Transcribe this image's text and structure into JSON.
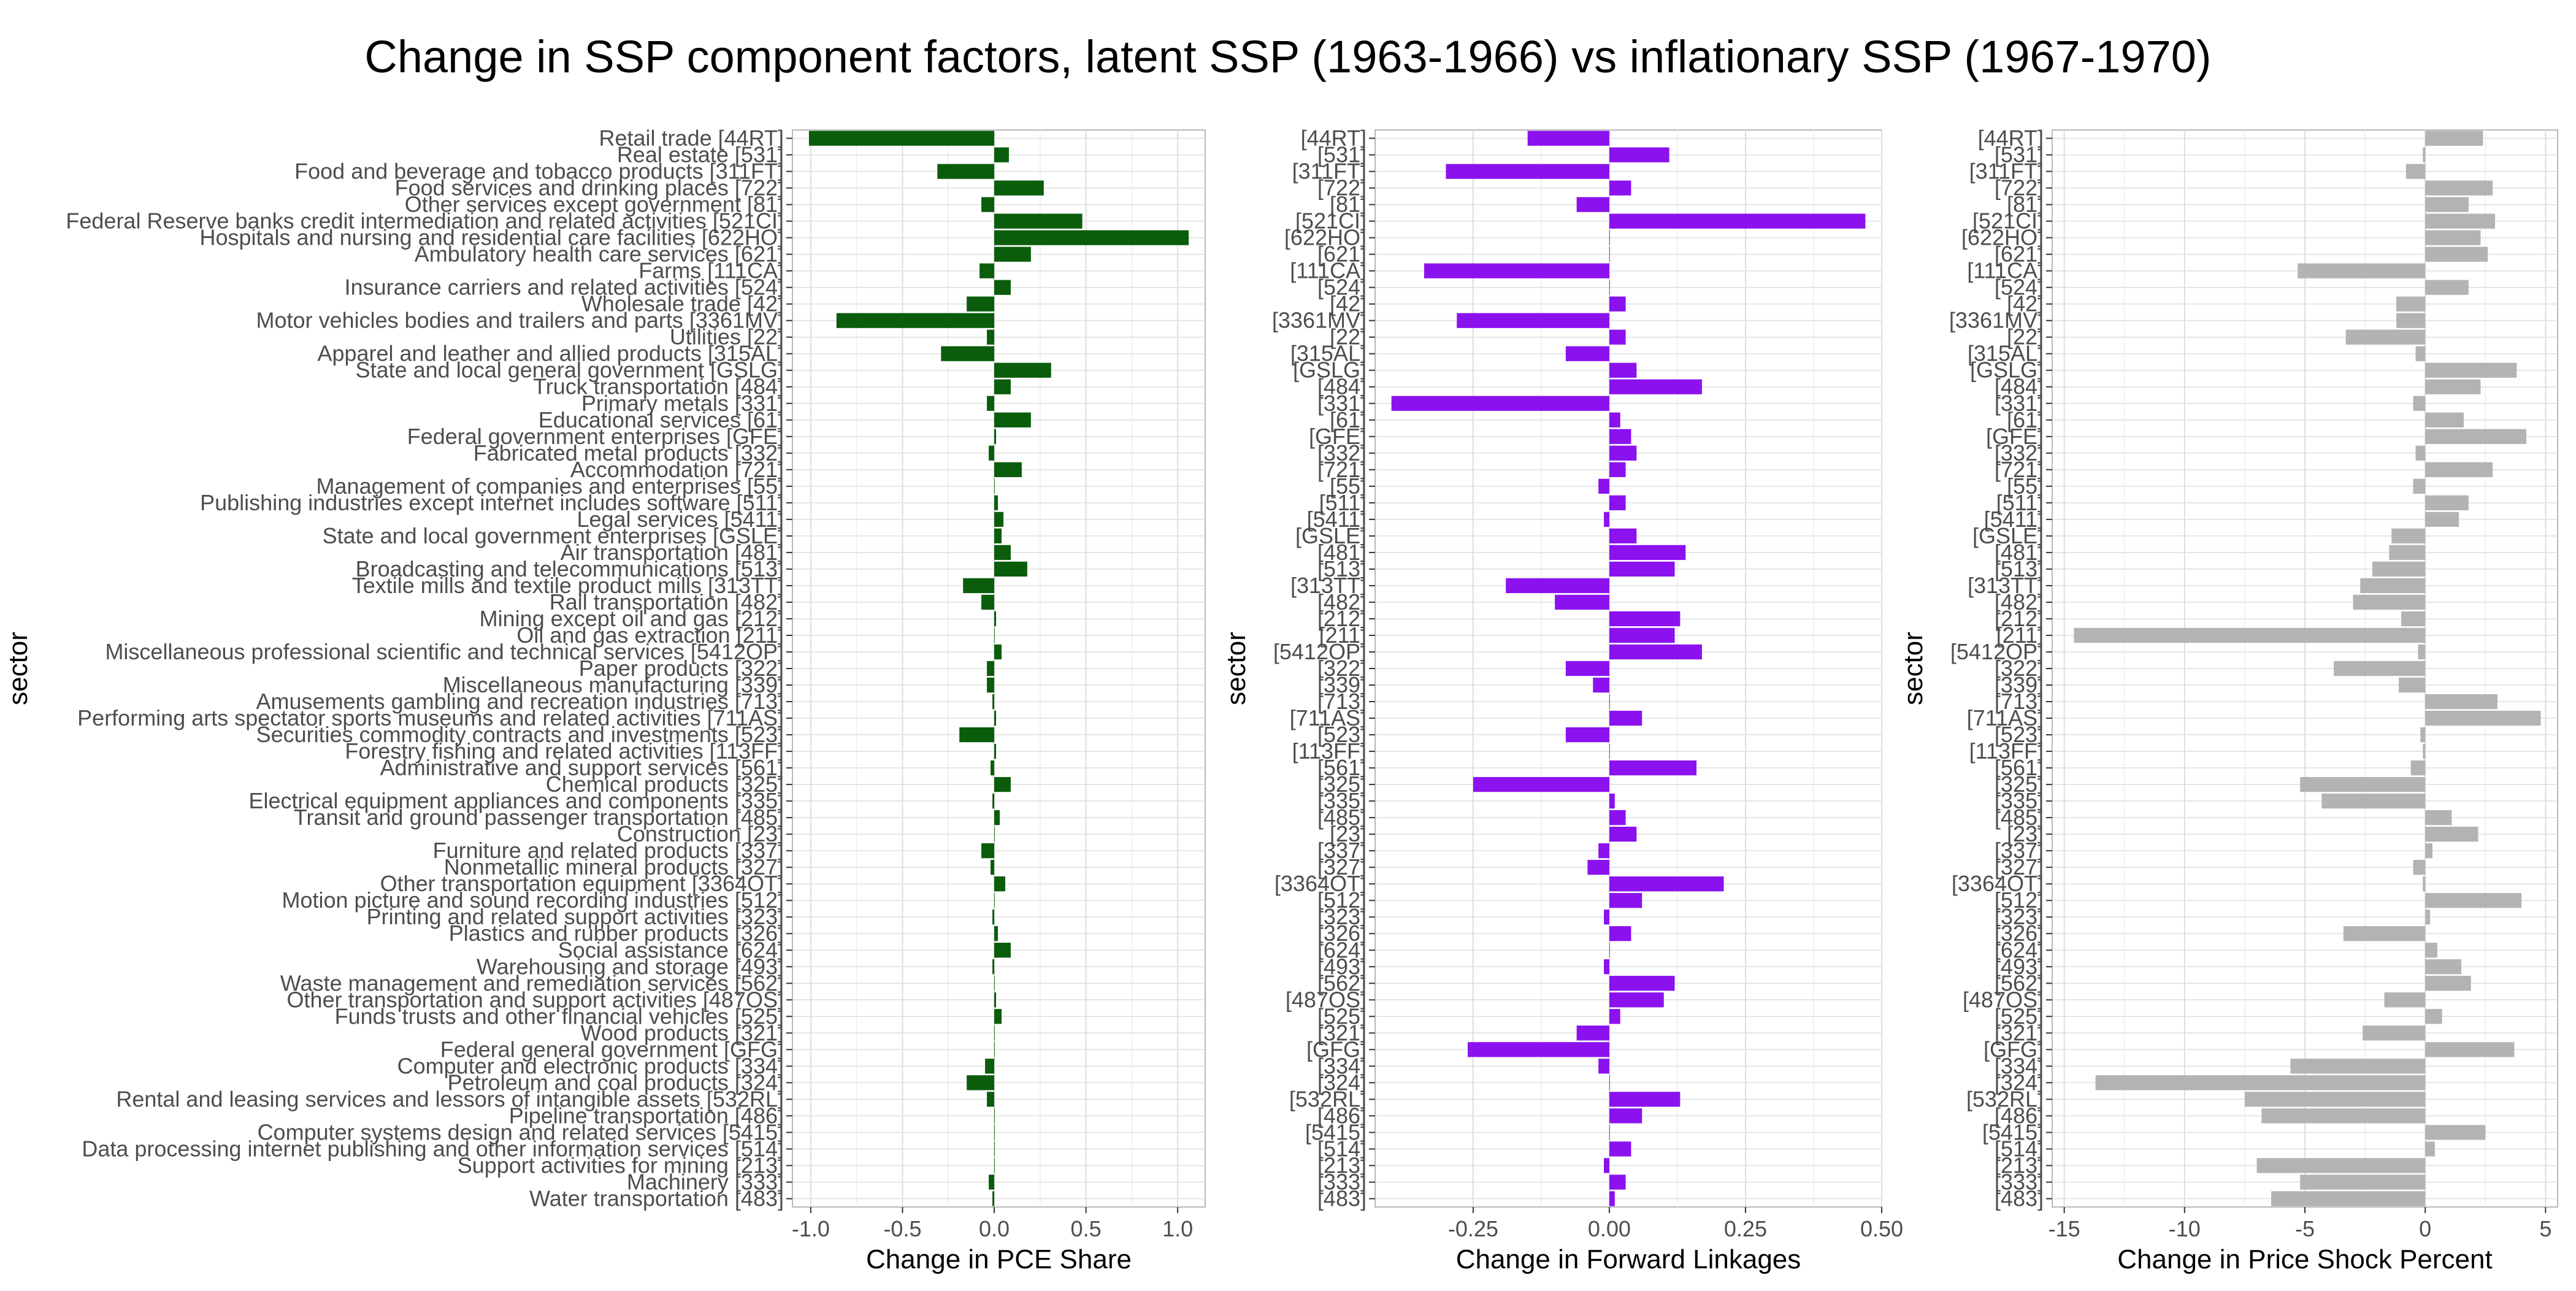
{
  "title": "Change in SSP component factors, latent SSP (1963-1966) vs inflationary SSP (1967-1970)",
  "chart_data": [
    {
      "type": "bar",
      "orientation": "horizontal",
      "xlabel": "Change in PCE Share",
      "ylabel": "sector",
      "xlim": [
        -1.1,
        1.15
      ],
      "xticks": [
        -1.0,
        -0.5,
        0.0,
        0.5,
        1.0
      ],
      "xtick_labels": [
        "-1.0",
        "-0.5",
        "0.0",
        "0.5",
        "1.0"
      ],
      "color": "#0b5d0b",
      "categories": [
        "Retail trade [44RT]",
        "Real estate [531]",
        "Food and beverage and tobacco products [311FT]",
        "Food services and drinking places [722]",
        "Other services except government [81]",
        "Federal Reserve banks credit intermediation and related activities [521CI]",
        "Hospitals and nursing and residential care facilities [622HO]",
        "Ambulatory health care services [621]",
        "Farms [111CA]",
        "Insurance carriers and related activities [524]",
        "Wholesale trade [42]",
        "Motor vehicles bodies and trailers and parts [3361MV]",
        "Utilities [22]",
        "Apparel and leather and allied products [315AL]",
        "State and local general government [GSLG]",
        "Truck transportation [484]",
        "Primary metals [331]",
        "Educational services [61]",
        "Federal government enterprises [GFE]",
        "Fabricated metal products [332]",
        "Accommodation [721]",
        "Management of companies and enterprises [55]",
        "Publishing industries except internet includes software [511]",
        "Legal services [5411]",
        "State and local government enterprises [GSLE]",
        "Air transportation [481]",
        "Broadcasting and telecommunications [513]",
        "Textile mills and textile product mills [313TT]",
        "Rail transportation [482]",
        "Mining except oil and gas [212]",
        "Oil and gas extraction [211]",
        "Miscellaneous professional scientific and technical services [5412OP]",
        "Paper products [322]",
        "Miscellaneous manufacturing [339]",
        "Amusements gambling and recreation industries [713]",
        "Performing arts spectator sports museums and related activities [711AS]",
        "Securities commodity contracts and investments [523]",
        "Forestry fishing and related activities [113FF]",
        "Administrative and support services [561]",
        "Chemical products [325]",
        "Electrical equipment appliances and components [335]",
        "Transit and ground passenger transportation [485]",
        "Construction [23]",
        "Furniture and related products [337]",
        "Nonmetallic mineral products [327]",
        "Other transportation equipment [3364OT]",
        "Motion picture and sound recording industries [512]",
        "Printing and related support activities [323]",
        "Plastics and rubber products [326]",
        "Social assistance [624]",
        "Warehousing and storage [493]",
        "Waste management and remediation services [562]",
        "Other transportation and support activities [487OS]",
        "Funds trusts and other financial vehicles [525]",
        "Wood products [321]",
        "Federal general government [GFG]",
        "Computer and electronic products [334]",
        "Petroleum and coal products [324]",
        "Rental and leasing services and lessors of intangible assets [532RL]",
        "Pipeline transportation [486]",
        "Computer systems design and related services [5415]",
        "Data processing internet publishing and other information services [514]",
        "Support activities for mining [213]",
        "Machinery [333]",
        "Water transportation [483]"
      ],
      "values": [
        -1.01,
        0.08,
        -0.31,
        0.27,
        -0.07,
        0.48,
        1.06,
        0.2,
        -0.08,
        0.09,
        -0.15,
        -0.86,
        -0.04,
        -0.29,
        0.31,
        0.09,
        -0.04,
        0.2,
        0.01,
        -0.03,
        0.15,
        0.0,
        0.02,
        0.05,
        0.04,
        0.09,
        0.18,
        -0.17,
        -0.07,
        0.01,
        0.0,
        0.04,
        -0.04,
        -0.04,
        -0.01,
        0.01,
        -0.19,
        0.01,
        -0.02,
        0.09,
        -0.01,
        0.03,
        0.0,
        -0.07,
        -0.02,
        0.06,
        0.0,
        -0.01,
        0.02,
        0.09,
        -0.01,
        0.0,
        0.01,
        0.04,
        0.0,
        0.0,
        -0.05,
        -0.15,
        -0.04,
        0.0,
        0.0,
        0.0,
        0.0,
        -0.03,
        -0.01
      ]
    },
    {
      "type": "bar",
      "orientation": "horizontal",
      "xlabel": "Change in Forward Linkages",
      "ylabel": "sector",
      "xlim": [
        -0.43,
        0.5
      ],
      "xticks": [
        -0.25,
        0.0,
        0.25,
        0.5
      ],
      "xtick_labels": [
        "-0.25",
        "0.00",
        "0.25",
        "0.50"
      ],
      "color": "#8b12ef",
      "categories": [
        "[44RT]",
        "[531]",
        "[311FT]",
        "[722]",
        "[81]",
        "[521CI]",
        "[622HO]",
        "[621]",
        "[111CA]",
        "[524]",
        "[42]",
        "[3361MV]",
        "[22]",
        "[315AL]",
        "[GSLG]",
        "[484]",
        "[331]",
        "[61]",
        "[GFE]",
        "[332]",
        "[721]",
        "[55]",
        "[511]",
        "[5411]",
        "[GSLE]",
        "[481]",
        "[513]",
        "[313TT]",
        "[482]",
        "[212]",
        "[211]",
        "[5412OP]",
        "[322]",
        "[339]",
        "[713]",
        "[711AS]",
        "[523]",
        "[113FF]",
        "[561]",
        "[325]",
        "[335]",
        "[485]",
        "[23]",
        "[337]",
        "[327]",
        "[3364OT]",
        "[512]",
        "[323]",
        "[326]",
        "[624]",
        "[493]",
        "[562]",
        "[487OS]",
        "[525]",
        "[321]",
        "[GFG]",
        "[334]",
        "[324]",
        "[532RL]",
        "[486]",
        "[5415]",
        "[514]",
        "[213]",
        "[333]",
        "[483]"
      ],
      "values": [
        -0.15,
        0.11,
        -0.3,
        0.04,
        -0.06,
        0.47,
        0.0,
        0.0,
        -0.34,
        0.0,
        0.03,
        -0.28,
        0.03,
        -0.08,
        0.05,
        0.17,
        -0.4,
        0.02,
        0.04,
        0.05,
        0.03,
        -0.02,
        0.03,
        -0.01,
        0.05,
        0.14,
        0.12,
        -0.19,
        -0.1,
        0.13,
        0.12,
        0.17,
        -0.08,
        -0.03,
        0.0,
        0.06,
        -0.08,
        0.0,
        0.16,
        -0.25,
        0.01,
        0.03,
        0.05,
        -0.02,
        -0.04,
        0.21,
        0.06,
        -0.01,
        0.04,
        0.0,
        -0.01,
        0.12,
        0.1,
        0.02,
        -0.06,
        -0.26,
        -0.02,
        0.0,
        0.13,
        0.06,
        0.0,
        0.04,
        -0.01,
        0.03,
        0.01
      ]
    },
    {
      "type": "bar",
      "orientation": "horizontal",
      "xlabel": "Change in Price Shock Percent",
      "ylabel": "sector",
      "xlim": [
        -15.5,
        5.5
      ],
      "xticks": [
        -15,
        -10,
        -5,
        0,
        5
      ],
      "xtick_labels": [
        "-15",
        "-10",
        "-5",
        "0",
        "5"
      ],
      "color": "#b3b3b3",
      "categories": [
        "[44RT]",
        "[531]",
        "[311FT]",
        "[722]",
        "[81]",
        "[521CI]",
        "[622HO]",
        "[621]",
        "[111CA]",
        "[524]",
        "[42]",
        "[3361MV]",
        "[22]",
        "[315AL]",
        "[GSLG]",
        "[484]",
        "[331]",
        "[61]",
        "[GFE]",
        "[332]",
        "[721]",
        "[55]",
        "[511]",
        "[5411]",
        "[GSLE]",
        "[481]",
        "[513]",
        "[313TT]",
        "[482]",
        "[212]",
        "[211]",
        "[5412OP]",
        "[322]",
        "[339]",
        "[713]",
        "[711AS]",
        "[523]",
        "[113FF]",
        "[561]",
        "[325]",
        "[335]",
        "[485]",
        "[23]",
        "[337]",
        "[327]",
        "[3364OT]",
        "[512]",
        "[323]",
        "[326]",
        "[624]",
        "[493]",
        "[562]",
        "[487OS]",
        "[525]",
        "[321]",
        "[GFG]",
        "[334]",
        "[324]",
        "[532RL]",
        "[486]",
        "[5415]",
        "[514]",
        "[213]",
        "[333]",
        "[483]"
      ],
      "values": [
        2.4,
        -0.1,
        -0.8,
        2.8,
        1.8,
        2.9,
        2.3,
        2.6,
        -5.3,
        1.8,
        -1.2,
        -1.2,
        -3.3,
        -0.4,
        3.8,
        2.3,
        -0.5,
        1.6,
        4.2,
        -0.4,
        2.8,
        -0.5,
        1.8,
        1.4,
        -1.4,
        -1.5,
        -2.2,
        -2.7,
        -3.0,
        -1.0,
        -14.6,
        -0.3,
        -3.8,
        -1.1,
        3.0,
        4.8,
        -0.2,
        -0.1,
        -0.6,
        -5.2,
        -4.3,
        1.1,
        2.2,
        0.3,
        -0.5,
        -0.1,
        4.0,
        0.2,
        -3.4,
        0.5,
        1.5,
        1.9,
        -1.7,
        0.7,
        -2.6,
        3.7,
        -5.6,
        -13.7,
        -7.5,
        -6.8,
        2.5,
        0.4,
        -7.0,
        -5.2,
        -6.4
      ]
    }
  ]
}
